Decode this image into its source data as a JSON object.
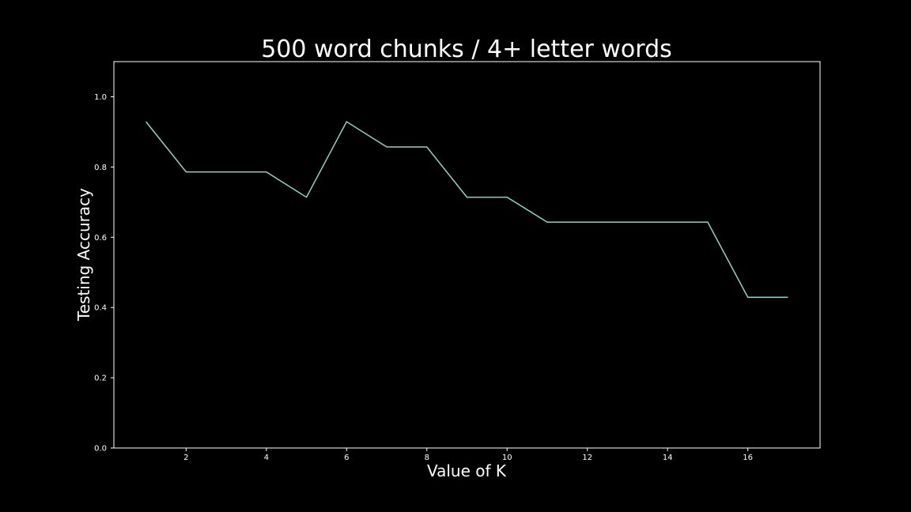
{
  "chart_data": {
    "type": "line",
    "title": "500 word chunks / 4+ letter words",
    "xlabel": "Value of K",
    "ylabel": "Testing Accuracy",
    "x": [
      1,
      2,
      3,
      4,
      5,
      6,
      7,
      8,
      9,
      10,
      11,
      12,
      13,
      14,
      15,
      16,
      17
    ],
    "series": [
      {
        "values": [
          0.929,
          0.786,
          0.786,
          0.786,
          0.714,
          0.929,
          0.857,
          0.857,
          0.714,
          0.714,
          0.643,
          0.643,
          0.643,
          0.643,
          0.643,
          0.429,
          0.429
        ],
        "color": "#8dd3c7"
      }
    ],
    "xlim": [
      0.2,
      17.8
    ],
    "ylim": [
      0,
      1.1
    ],
    "xticks": [
      2,
      4,
      6,
      8,
      10,
      12,
      14,
      16
    ],
    "xtick_labels": [
      "2",
      "4",
      "6",
      "8",
      "10",
      "12",
      "14",
      "16"
    ],
    "yticks": [
      0.0,
      0.2,
      0.4,
      0.6,
      0.8,
      1.0
    ],
    "ytick_labels": [
      "0.0",
      "0.2",
      "0.4",
      "0.6",
      "0.8",
      "1.0"
    ],
    "grid": false,
    "background_color": "#000000",
    "foreground_color": "#ffffff"
  }
}
